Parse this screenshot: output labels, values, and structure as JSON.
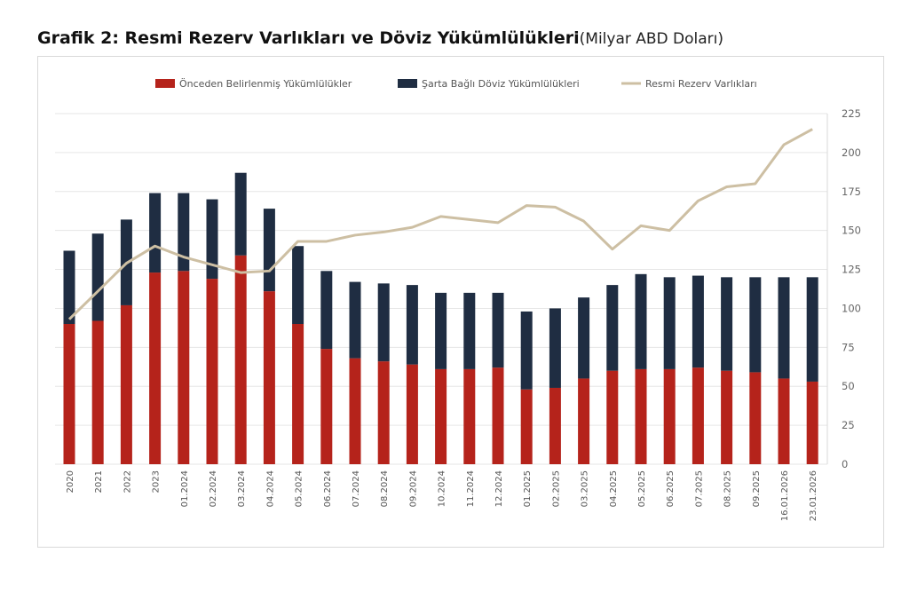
{
  "title": "Grafik 2: Resmi Rezerv Varlıkları ve Döviz Yükümlülükleri",
  "subtitle": "(Milyar ABD Doları)",
  "chart_data": {
    "type": "bar",
    "stacked": true,
    "title": "Grafik 2: Resmi Rezerv Varlıkları ve Döviz Yükümlülükleri",
    "subtitle": "(Milyar ABD Doları)",
    "categories": [
      "2020",
      "2021",
      "2022",
      "2023",
      "01.2024",
      "02.2024",
      "03.2024",
      "04.2024",
      "05.2024",
      "06.2024",
      "07.2024",
      "08.2024",
      "09.2024",
      "10.2024",
      "11.2024",
      "12.2024",
      "01.2025",
      "02.2025",
      "03.2025",
      "04.2025",
      "05.2025",
      "06.2025",
      "07.2025",
      "08.2025",
      "09.2025",
      "16.01.2026",
      "23.01.2026"
    ],
    "series": [
      {
        "name": "Önceden Belirlenmiş Yükümlülükler",
        "type": "bar",
        "color": "#b5231b",
        "values": [
          90,
          92,
          102,
          123,
          124,
          119,
          134,
          111,
          90,
          74,
          68,
          66,
          64,
          61,
          61,
          62,
          48,
          49,
          55,
          60,
          61,
          61,
          62,
          60,
          59,
          55,
          53
        ]
      },
      {
        "name": "Şarta Bağlı Döviz Yükümlülükleri",
        "type": "bar",
        "color": "#1f2d42",
        "values": [
          47,
          56,
          55,
          51,
          50,
          51,
          53,
          53,
          50,
          50,
          49,
          50,
          51,
          49,
          49,
          48,
          50,
          51,
          52,
          55,
          61,
          59,
          59,
          60,
          61,
          65,
          67
        ]
      },
      {
        "name": "Resmi Rezerv Varlıkları",
        "type": "line",
        "color": "#cdbfa3",
        "values": [
          93,
          111,
          129,
          140,
          133,
          128,
          123,
          124,
          143,
          143,
          147,
          149,
          152,
          159,
          157,
          155,
          166,
          165,
          156,
          138,
          153,
          150,
          169,
          178,
          180,
          205,
          215
        ]
      }
    ],
    "yaxis": {
      "position": "right",
      "ylim": [
        0,
        225
      ],
      "ticks": [
        0,
        25,
        50,
        75,
        100,
        125,
        150,
        175,
        200,
        225
      ]
    },
    "grid": true,
    "legend": "top"
  }
}
